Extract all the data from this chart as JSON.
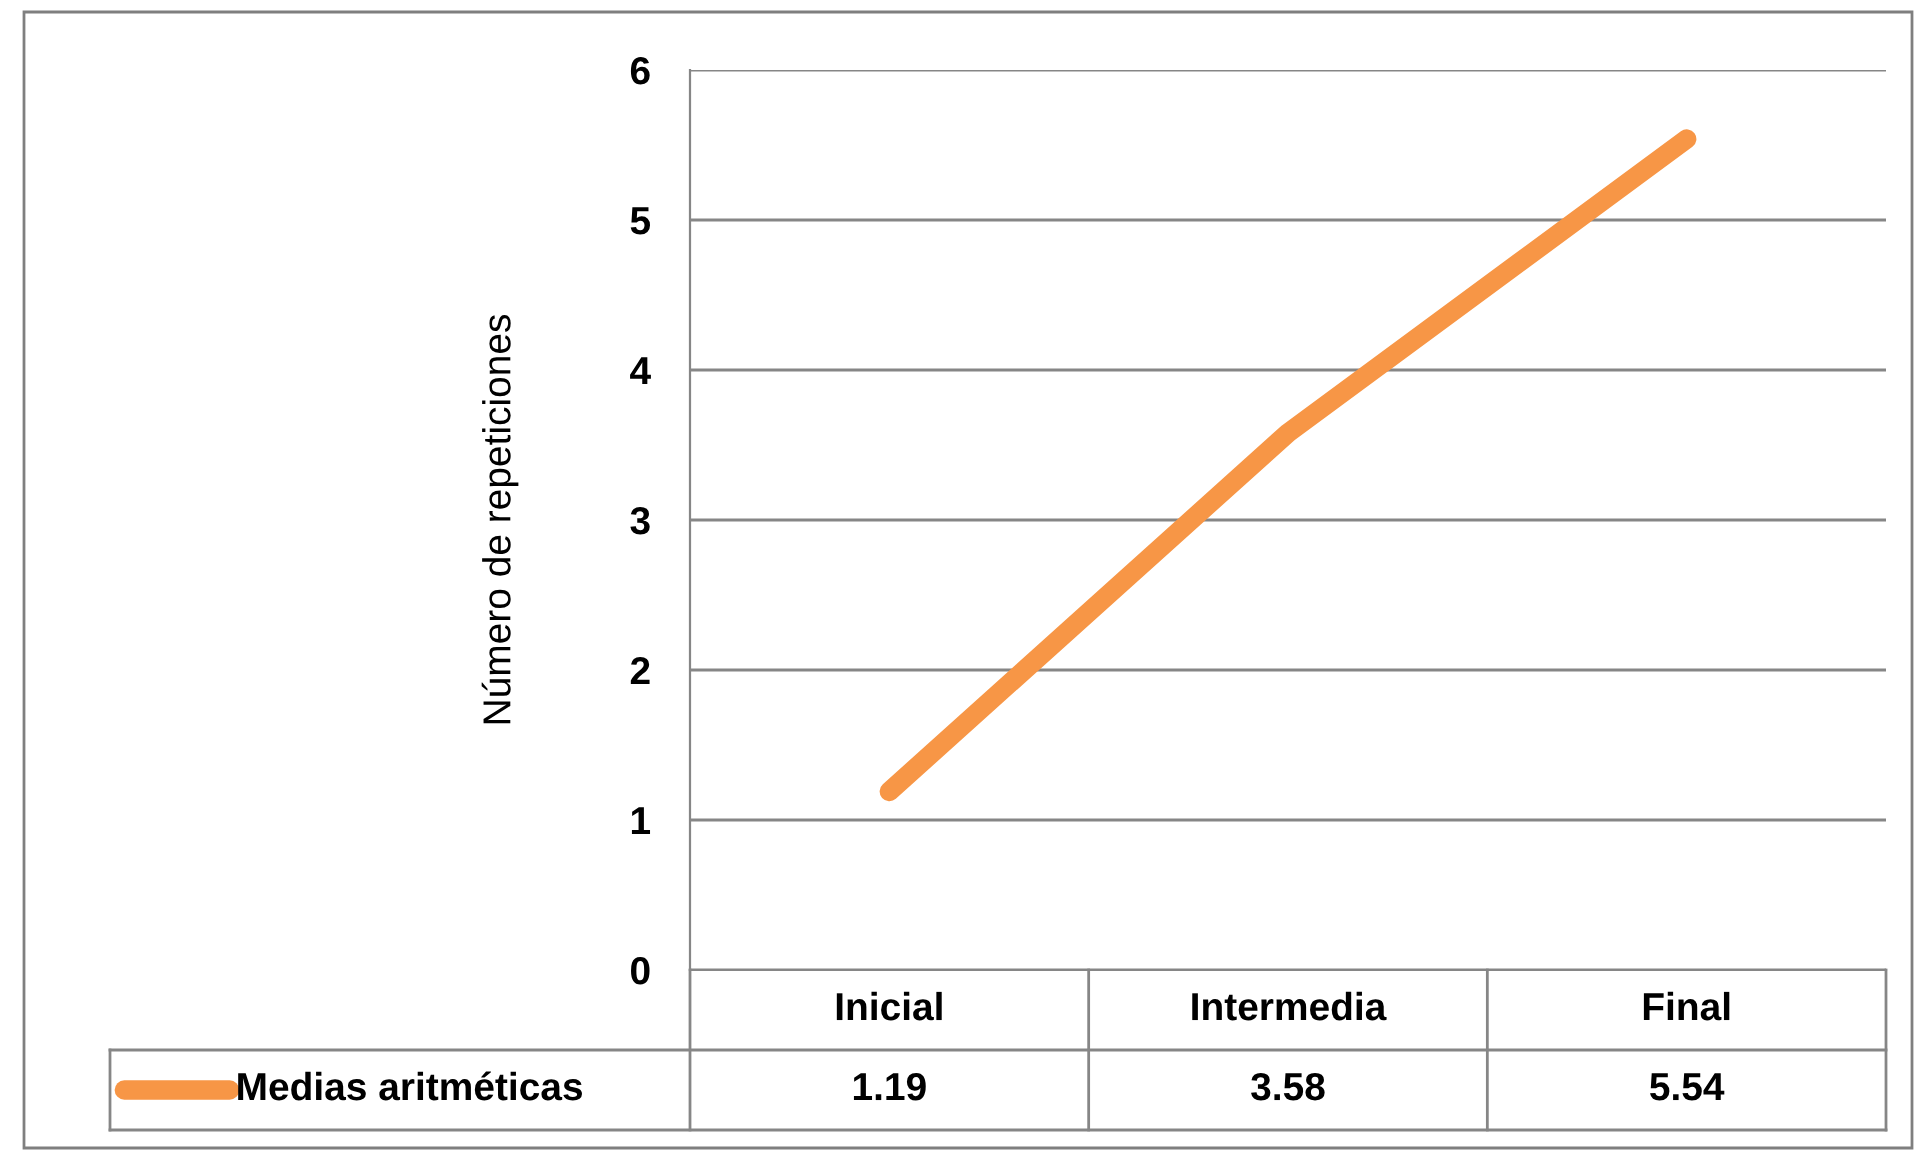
{
  "chart_data": {
    "type": "line",
    "ylabel": "Número de repeticiones",
    "categories": [
      "Inicial",
      "Intermedia",
      "Final"
    ],
    "series": [
      {
        "name": "Medias aritméticas",
        "color": "#f79646",
        "values": [
          1.19,
          3.58,
          5.54
        ]
      }
    ],
    "ylim": [
      0,
      6
    ],
    "yticks": [
      0,
      1,
      2,
      3,
      4,
      5,
      6
    ],
    "grid": "y",
    "legend": "bottom",
    "data_labels": true,
    "marker": "none",
    "line_style": "solid"
  }
}
